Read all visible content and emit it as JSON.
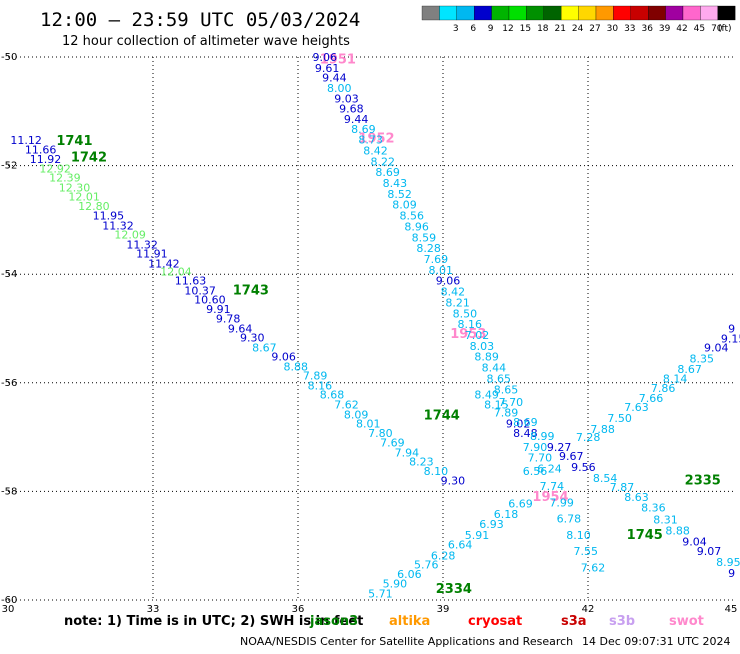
{
  "header": {
    "title": "12:00 — 23:59 UTC 05/03/2024",
    "subtitle": "12 hour collection of altimeter wave heights"
  },
  "colors": {
    "background": "#ffffff",
    "grid": "#000000"
  },
  "color_scale": {
    "unit": "(ft)",
    "bins": [
      {
        "label": "",
        "color": "#808080"
      },
      {
        "label": "3",
        "color": "#00e5ff"
      },
      {
        "label": "6",
        "color": "#00b8f0"
      },
      {
        "label": "9",
        "color": "#0000cd"
      },
      {
        "label": "12",
        "color": "#00b400"
      },
      {
        "label": "15",
        "color": "#00e000"
      },
      {
        "label": "18",
        "color": "#009000"
      },
      {
        "label": "21",
        "color": "#006400"
      },
      {
        "label": "24",
        "color": "#ffff00"
      },
      {
        "label": "27",
        "color": "#ffd700"
      },
      {
        "label": "30",
        "color": "#ff9900"
      },
      {
        "label": "33",
        "color": "#ff0000"
      },
      {
        "label": "36",
        "color": "#c80000"
      },
      {
        "label": "39",
        "color": "#800000"
      },
      {
        "label": "42",
        "color": "#a000a0"
      },
      {
        "label": "45",
        "color": "#ff66cc"
      },
      {
        "label": "70",
        "color": "#ffaaee"
      },
      {
        "label": "",
        "color": "#000000"
      }
    ]
  },
  "chart_data": {
    "type": "scatter",
    "xlim": [
      30,
      45
    ],
    "ylim": [
      -60,
      -50
    ],
    "x_ticks": [
      30,
      33,
      36,
      39,
      42,
      45
    ],
    "x_tick_labels": [
      "30",
      "33",
      "36",
      "39",
      "42",
      "45"
    ],
    "y_ticks": [
      -50,
      -52,
      -54,
      -56,
      -58,
      -60
    ],
    "y_tick_labels": [
      "-50",
      "-52",
      "-54",
      "-56",
      "-58",
      "-60"
    ],
    "grid": "dotted",
    "time_labels": [
      {
        "text": "1741",
        "x": 31.0,
        "y": -51.55,
        "color": "#008000"
      },
      {
        "text": "1742",
        "x": 31.3,
        "y": -51.85,
        "color": "#008000"
      },
      {
        "text": "1743",
        "x": 34.65,
        "y": -54.3,
        "color": "#008000"
      },
      {
        "text": "1744",
        "x": 38.6,
        "y": -56.6,
        "color": "#008000"
      },
      {
        "text": "1745",
        "x": 42.8,
        "y": -58.8,
        "color": "#008000"
      },
      {
        "text": "1951",
        "x": 36.45,
        "y": -50.05,
        "color": "#ff88cc"
      },
      {
        "text": "1952",
        "x": 37.25,
        "y": -51.5,
        "color": "#ff88cc"
      },
      {
        "text": "1953",
        "x": 39.15,
        "y": -55.1,
        "color": "#ff88cc"
      },
      {
        "text": "1954",
        "x": 40.85,
        "y": -58.1,
        "color": "#ff88cc"
      },
      {
        "text": "2334",
        "x": 38.85,
        "y": -59.8,
        "color": "#008000"
      },
      {
        "text": "2335",
        "x": 44.0,
        "y": -57.8,
        "color": "#008000"
      }
    ],
    "observations": [
      {
        "v": "11.12",
        "x": 30.05,
        "y": -51.53,
        "color": "#0000cd"
      },
      {
        "v": "11.66",
        "x": 30.35,
        "y": -51.7,
        "color": "#0000cd"
      },
      {
        "v": "11.92",
        "x": 30.45,
        "y": -51.88,
        "color": "#0000cd"
      },
      {
        "v": "12.92",
        "x": 30.65,
        "y": -52.05,
        "color": "#66ee66"
      },
      {
        "v": "12.39",
        "x": 30.85,
        "y": -52.22,
        "color": "#66ee66"
      },
      {
        "v": "12.30",
        "x": 31.05,
        "y": -52.4,
        "color": "#66ee66"
      },
      {
        "v": "12.01",
        "x": 31.25,
        "y": -52.57,
        "color": "#66ee66"
      },
      {
        "v": "12.80",
        "x": 31.45,
        "y": -52.74,
        "color": "#66ee66"
      },
      {
        "v": "11.95",
        "x": 31.75,
        "y": -52.92,
        "color": "#0000cd"
      },
      {
        "v": "11.32",
        "x": 31.95,
        "y": -53.1,
        "color": "#0000cd"
      },
      {
        "v": "12.09",
        "x": 32.2,
        "y": -53.27,
        "color": "#66ee66"
      },
      {
        "v": "11.32",
        "x": 32.45,
        "y": -53.45,
        "color": "#0000cd"
      },
      {
        "v": "11.91",
        "x": 32.65,
        "y": -53.62,
        "color": "#0000cd"
      },
      {
        "v": "11.42",
        "x": 32.9,
        "y": -53.8,
        "color": "#0000cd"
      },
      {
        "v": "12.04",
        "x": 33.15,
        "y": -53.95,
        "color": "#66ee66"
      },
      {
        "v": "11.63",
        "x": 33.45,
        "y": -54.12,
        "color": "#0000cd"
      },
      {
        "v": "10.37",
        "x": 33.65,
        "y": -54.3,
        "color": "#0000cd"
      },
      {
        "v": "10.60",
        "x": 33.85,
        "y": -54.47,
        "color": "#0000cd"
      },
      {
        "v": "9.91",
        "x": 34.1,
        "y": -54.64,
        "color": "#0000cd"
      },
      {
        "v": "9.78",
        "x": 34.3,
        "y": -54.82,
        "color": "#0000cd"
      },
      {
        "v": "9.64",
        "x": 34.55,
        "y": -55.0,
        "color": "#0000cd"
      },
      {
        "v": "9.30",
        "x": 34.8,
        "y": -55.17,
        "color": "#0000cd"
      },
      {
        "v": "8.67",
        "x": 35.05,
        "y": -55.35,
        "color": "#00b8f0"
      },
      {
        "v": "9.06",
        "x": 35.45,
        "y": -55.52,
        "color": "#0000cd"
      },
      {
        "v": "8.88",
        "x": 35.7,
        "y": -55.7,
        "color": "#00b8f0"
      },
      {
        "v": "7.89",
        "x": 36.1,
        "y": -55.87,
        "color": "#00b8f0"
      },
      {
        "v": "8.16",
        "x": 36.2,
        "y": -56.05,
        "color": "#00b8f0"
      },
      {
        "v": "8.68",
        "x": 36.45,
        "y": -56.22,
        "color": "#00b8f0"
      },
      {
        "v": "7.62",
        "x": 36.75,
        "y": -56.4,
        "color": "#00b8f0"
      },
      {
        "v": "8.09",
        "x": 36.95,
        "y": -56.58,
        "color": "#00b8f0"
      },
      {
        "v": "8.01",
        "x": 37.2,
        "y": -56.75,
        "color": "#00b8f0"
      },
      {
        "v": "7.80",
        "x": 37.45,
        "y": -56.92,
        "color": "#00b8f0"
      },
      {
        "v": "7.69",
        "x": 37.7,
        "y": -57.1,
        "color": "#00b8f0"
      },
      {
        "v": "7.94",
        "x": 38.0,
        "y": -57.28,
        "color": "#00b8f0"
      },
      {
        "v": "8.23",
        "x": 38.3,
        "y": -57.45,
        "color": "#00b8f0"
      },
      {
        "v": "8.10",
        "x": 38.6,
        "y": -57.62,
        "color": "#00b8f0"
      },
      {
        "v": "9.30",
        "x": 38.95,
        "y": -57.8,
        "color": "#0000cd"
      },
      {
        "v": "9.06",
        "x": 36.3,
        "y": -50.0,
        "color": "#0000cd"
      },
      {
        "v": "9.61",
        "x": 36.35,
        "y": -50.2,
        "color": "#0000cd"
      },
      {
        "v": "9.44",
        "x": 36.5,
        "y": -50.38,
        "color": "#0000cd"
      },
      {
        "v": "8.00",
        "x": 36.6,
        "y": -50.57,
        "color": "#00b8f0"
      },
      {
        "v": "9.03",
        "x": 36.75,
        "y": -50.76,
        "color": "#0000cd"
      },
      {
        "v": "9.68",
        "x": 36.85,
        "y": -50.95,
        "color": "#0000cd"
      },
      {
        "v": "9.44",
        "x": 36.95,
        "y": -51.14,
        "color": "#0000cd"
      },
      {
        "v": "8.69",
        "x": 37.1,
        "y": -51.33,
        "color": "#00b8f0"
      },
      {
        "v": "8.73",
        "x": 37.25,
        "y": -51.52,
        "color": "#00b8f0"
      },
      {
        "v": "8.42",
        "x": 37.35,
        "y": -51.72,
        "color": "#00b8f0"
      },
      {
        "v": "8.22",
        "x": 37.5,
        "y": -51.92,
        "color": "#00b8f0"
      },
      {
        "v": "8.69",
        "x": 37.6,
        "y": -52.12,
        "color": "#00b8f0"
      },
      {
        "v": "8.43",
        "x": 37.75,
        "y": -52.32,
        "color": "#00b8f0"
      },
      {
        "v": "8.52",
        "x": 37.85,
        "y": -52.52,
        "color": "#00b8f0"
      },
      {
        "v": "8.09",
        "x": 37.95,
        "y": -52.72,
        "color": "#00b8f0"
      },
      {
        "v": "8.56",
        "x": 38.1,
        "y": -52.92,
        "color": "#00b8f0"
      },
      {
        "v": "8.96",
        "x": 38.2,
        "y": -53.12,
        "color": "#00b8f0"
      },
      {
        "v": "8.59",
        "x": 38.35,
        "y": -53.32,
        "color": "#00b8f0"
      },
      {
        "v": "8.28",
        "x": 38.45,
        "y": -53.52,
        "color": "#00b8f0"
      },
      {
        "v": "7.69",
        "x": 38.6,
        "y": -53.72,
        "color": "#00b8f0"
      },
      {
        "v": "8.01",
        "x": 38.7,
        "y": -53.92,
        "color": "#00b8f0"
      },
      {
        "v": "9.06",
        "x": 38.85,
        "y": -54.12,
        "color": "#0000cd"
      },
      {
        "v": "8.42",
        "x": 38.95,
        "y": -54.32,
        "color": "#00b8f0"
      },
      {
        "v": "8.21",
        "x": 39.05,
        "y": -54.52,
        "color": "#00b8f0"
      },
      {
        "v": "8.50",
        "x": 39.2,
        "y": -54.72,
        "color": "#00b8f0"
      },
      {
        "v": "8.16",
        "x": 39.3,
        "y": -54.92,
        "color": "#00b8f0"
      },
      {
        "v": "7.02",
        "x": 39.45,
        "y": -55.12,
        "color": "#00b8f0"
      },
      {
        "v": "8.03",
        "x": 39.55,
        "y": -55.32,
        "color": "#00b8f0"
      },
      {
        "v": "8.89",
        "x": 39.65,
        "y": -55.52,
        "color": "#00b8f0"
      },
      {
        "v": "8.44",
        "x": 39.8,
        "y": -55.72,
        "color": "#00b8f0"
      },
      {
        "v": "8.65",
        "x": 39.9,
        "y": -55.92,
        "color": "#00b8f0"
      },
      {
        "v": "8.65",
        "x": 40.05,
        "y": -56.12,
        "color": "#00b8f0"
      },
      {
        "v": "8.49",
        "x": 39.65,
        "y": -56.22,
        "color": "#00b8f0"
      },
      {
        "v": "8.15",
        "x": 39.85,
        "y": -56.4,
        "color": "#00b8f0"
      },
      {
        "v": "7.70",
        "x": 40.15,
        "y": -56.35,
        "color": "#00b8f0"
      },
      {
        "v": "7.89",
        "x": 40.05,
        "y": -56.55,
        "color": "#00b8f0"
      },
      {
        "v": "9.02",
        "x": 40.3,
        "y": -56.75,
        "color": "#0000cd"
      },
      {
        "v": "8.69",
        "x": 40.45,
        "y": -56.72,
        "color": "#00b8f0"
      },
      {
        "v": "8.48",
        "x": 40.45,
        "y": -56.92,
        "color": "#0000cd"
      },
      {
        "v": "8.99",
        "x": 40.8,
        "y": -56.98,
        "color": "#00b8f0"
      },
      {
        "v": "9.27",
        "x": 41.15,
        "y": -57.18,
        "color": "#0000cd"
      },
      {
        "v": "9.67",
        "x": 41.4,
        "y": -57.35,
        "color": "#0000cd"
      },
      {
        "v": "9.56",
        "x": 41.65,
        "y": -57.55,
        "color": "#0000cd"
      },
      {
        "v": "7.90",
        "x": 40.65,
        "y": -57.18,
        "color": "#00b8f0"
      },
      {
        "v": "7.70",
        "x": 40.75,
        "y": -57.38,
        "color": "#00b8f0"
      },
      {
        "v": "6.56",
        "x": 40.65,
        "y": -57.62,
        "color": "#00b8f0"
      },
      {
        "v": "6.24",
        "x": 40.95,
        "y": -57.58,
        "color": "#00b8f0"
      },
      {
        "v": "7.74",
        "x": 41.0,
        "y": -57.9,
        "color": "#00b8f0"
      },
      {
        "v": "7.99",
        "x": 41.2,
        "y": -58.2,
        "color": "#00b8f0"
      },
      {
        "v": "6.78",
        "x": 41.35,
        "y": -58.5,
        "color": "#00b8f0"
      },
      {
        "v": "8.10",
        "x": 41.55,
        "y": -58.8,
        "color": "#00b8f0"
      },
      {
        "v": "7.55",
        "x": 41.7,
        "y": -59.1,
        "color": "#00b8f0"
      },
      {
        "v": "7.62",
        "x": 41.85,
        "y": -59.4,
        "color": "#00b8f0"
      },
      {
        "v": "8.54",
        "x": 42.1,
        "y": -57.75,
        "color": "#00b8f0"
      },
      {
        "v": "7.87",
        "x": 42.45,
        "y": -57.92,
        "color": "#00b8f0"
      },
      {
        "v": "8.63",
        "x": 42.75,
        "y": -58.1,
        "color": "#00b8f0"
      },
      {
        "v": "8.36",
        "x": 43.1,
        "y": -58.3,
        "color": "#00b8f0"
      },
      {
        "v": "8.31",
        "x": 43.35,
        "y": -58.52,
        "color": "#00b8f0"
      },
      {
        "v": "8.88",
        "x": 43.6,
        "y": -58.72,
        "color": "#00b8f0"
      },
      {
        "v": "9.04",
        "x": 43.95,
        "y": -58.92,
        "color": "#0000cd"
      },
      {
        "v": "9.07",
        "x": 44.25,
        "y": -59.1,
        "color": "#0000cd"
      },
      {
        "v": "8.95",
        "x": 44.65,
        "y": -59.3,
        "color": "#00b8f0"
      },
      {
        "v": "5.71",
        "x": 37.45,
        "y": -59.88,
        "color": "#00b8f0"
      },
      {
        "v": "5.90",
        "x": 37.75,
        "y": -59.7,
        "color": "#00b8f0"
      },
      {
        "v": "6.06",
        "x": 38.05,
        "y": -59.52,
        "color": "#00b8f0"
      },
      {
        "v": "5.76",
        "x": 38.4,
        "y": -59.35,
        "color": "#00b8f0"
      },
      {
        "v": "6.28",
        "x": 38.75,
        "y": -59.18,
        "color": "#00b8f0"
      },
      {
        "v": "6.64",
        "x": 39.1,
        "y": -58.98,
        "color": "#00b8f0"
      },
      {
        "v": "5.91",
        "x": 39.45,
        "y": -58.8,
        "color": "#00b8f0"
      },
      {
        "v": "6.93",
        "x": 39.75,
        "y": -58.6,
        "color": "#00b8f0"
      },
      {
        "v": "6.18",
        "x": 40.05,
        "y": -58.42,
        "color": "#00b8f0"
      },
      {
        "v": "6.69",
        "x": 40.35,
        "y": -58.22,
        "color": "#00b8f0"
      },
      {
        "v": "7.28",
        "x": 41.75,
        "y": -57.0,
        "color": "#00b8f0"
      },
      {
        "v": "7.88",
        "x": 42.05,
        "y": -56.85,
        "color": "#00b8f0"
      },
      {
        "v": "7.50",
        "x": 42.4,
        "y": -56.65,
        "color": "#00b8f0"
      },
      {
        "v": "7.63",
        "x": 42.75,
        "y": -56.45,
        "color": "#00b8f0"
      },
      {
        "v": "7.66",
        "x": 43.05,
        "y": -56.28,
        "color": "#00b8f0"
      },
      {
        "v": "7.86",
        "x": 43.3,
        "y": -56.1,
        "color": "#00b8f0"
      },
      {
        "v": "8.14",
        "x": 43.55,
        "y": -55.92,
        "color": "#00b8f0"
      },
      {
        "v": "8.67",
        "x": 43.85,
        "y": -55.75,
        "color": "#00b8f0"
      },
      {
        "v": "8.35",
        "x": 44.1,
        "y": -55.55,
        "color": "#00b8f0"
      },
      {
        "v": "9.04",
        "x": 44.4,
        "y": -55.35,
        "color": "#0000cd"
      },
      {
        "v": "9.15",
        "x": 44.75,
        "y": -55.18,
        "color": "#0000cd"
      },
      {
        "v": "9",
        "x": 44.9,
        "y": -55.0,
        "color": "#0000cd"
      },
      {
        "v": "9",
        "x": 44.9,
        "y": -59.5,
        "color": "#0000cd"
      }
    ]
  },
  "note": {
    "text": "note:  1) Time is in UTC; 2) SWH is in feet"
  },
  "satellites": [
    {
      "name": "jason3",
      "color": "#008000"
    },
    {
      "name": "altika",
      "color": "#ff9900"
    },
    {
      "name": "cryosat",
      "color": "#ff0000"
    },
    {
      "name": "s3a",
      "color": "#c80000"
    },
    {
      "name": "s3b",
      "color": "#c8a0f0"
    },
    {
      "name": "swot",
      "color": "#ff88cc"
    }
  ],
  "footer": {
    "credit": "NOAA/NESDIS Center for Satellite Applications and Research",
    "generated": "14 Dec 09:07:31 UTC 2024"
  }
}
